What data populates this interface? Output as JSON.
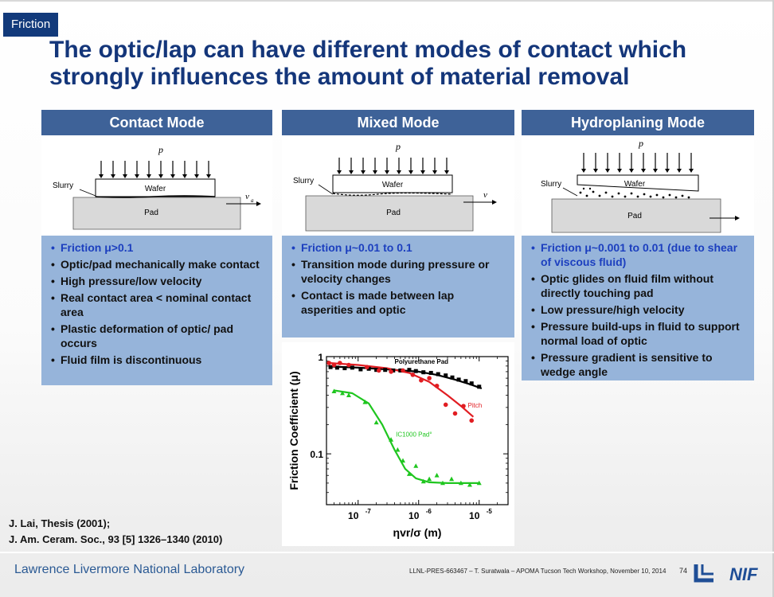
{
  "section_tag": "Friction",
  "title": "The optic/lap can have different modes of contact which strongly influences the amount of material removal",
  "columns": [
    {
      "heading": "Contact Mode",
      "diagram": {
        "p": "p",
        "slurry": "Slurry",
        "wafer": "Wafer",
        "pad": "Pad",
        "v": "v",
        "v_sub": "a"
      },
      "items": [
        "Friction μ>0.1",
        "Optic/pad mechanically make contact",
        "High pressure/low velocity",
        "Real contact area < nominal contact area",
        "Plastic deformation of optic/ pad occurs",
        "Fluid film is discontinuous"
      ]
    },
    {
      "heading": "Mixed Mode",
      "diagram": {
        "p": "p",
        "slurry": "Slurry",
        "wafer": "Wafer",
        "pad": "Pad",
        "v": "v"
      },
      "items": [
        "Friction μ~0.01 to 0.1",
        "Transition mode during pressure or velocity changes",
        "Contact is made between lap asperities and optic"
      ]
    },
    {
      "heading": "Hydroplaning Mode",
      "diagram": {
        "p": "p",
        "slurry": "Slurry",
        "wafer": "Wafer",
        "pad": "Pad"
      },
      "items": [
        "Friction μ~0.001 to 0.01 (due to shear of viscous fluid)",
        "Optic glides on fluid film without directly touching pad",
        "Low pressure/high velocity",
        "Pressure build-ups in fluid to support normal load of optic",
        "Pressure gradient is sensitive to wedge angle"
      ]
    }
  ],
  "chart_data": {
    "type": "scatter",
    "xlabel": "ηvr/σ (m)",
    "ylabel": "Friction Coefficient (μ)",
    "xscale": "log",
    "yscale": "log",
    "xlim": [
      3e-08,
      3e-05
    ],
    "ylim": [
      0.03,
      1.0
    ],
    "xticks": [
      1e-07,
      1e-06,
      1e-05
    ],
    "xtick_labels": [
      "10",
      "10",
      "10"
    ],
    "xtick_exps": [
      "-7",
      "-6",
      "-5"
    ],
    "yticks": [
      1,
      0.1
    ],
    "ytick_labels": [
      "1",
      "0.1"
    ],
    "series": [
      {
        "name": "Polyurethane Pad",
        "color": "#000000",
        "marker": "square",
        "points": [
          [
            3.5e-08,
            0.78
          ],
          [
            4.5e-08,
            0.77
          ],
          [
            6e-08,
            0.76
          ],
          [
            8e-08,
            0.77
          ],
          [
            1.1e-07,
            0.74
          ],
          [
            1.5e-07,
            0.75
          ],
          [
            2e-07,
            0.73
          ],
          [
            2.8e-07,
            0.73
          ],
          [
            3.8e-07,
            0.72
          ],
          [
            5e-07,
            0.72
          ],
          [
            7e-07,
            0.73
          ],
          [
            9e-07,
            0.71
          ],
          [
            1.2e-06,
            0.69
          ],
          [
            1.6e-06,
            0.68
          ],
          [
            2.1e-06,
            0.66
          ],
          [
            2.8e-06,
            0.64
          ],
          [
            3.6e-06,
            0.61
          ],
          [
            4.6e-06,
            0.58
          ],
          [
            6e-06,
            0.56
          ],
          [
            7.5e-06,
            0.53
          ],
          [
            1e-05,
            0.49
          ]
        ],
        "fit": [
          [
            3.5e-08,
            0.79
          ],
          [
            1e-07,
            0.77
          ],
          [
            3e-07,
            0.74
          ],
          [
            1e-06,
            0.7
          ],
          [
            2e-06,
            0.65
          ],
          [
            4e-06,
            0.58
          ],
          [
            7e-06,
            0.52
          ],
          [
            1.1e-05,
            0.47
          ]
        ]
      },
      {
        "name": "Pitch",
        "color": "#e11d22",
        "marker": "circle",
        "points": [
          [
            3.3e-08,
            0.86
          ],
          [
            4e-08,
            0.82
          ],
          [
            5e-08,
            0.86
          ],
          [
            7e-08,
            0.82
          ],
          [
            1.4e-07,
            0.78
          ],
          [
            2.2e-07,
            0.72
          ],
          [
            3.5e-07,
            0.7
          ],
          [
            5.5e-07,
            0.72
          ],
          [
            8e-07,
            0.65
          ],
          [
            1.1e-06,
            0.57
          ],
          [
            1.5e-06,
            0.6
          ],
          [
            2e-06,
            0.5
          ],
          [
            2.8e-06,
            0.32
          ],
          [
            4e-06,
            0.26
          ],
          [
            5.5e-06,
            0.31
          ],
          [
            7.5e-06,
            0.22
          ]
        ],
        "fit": [
          [
            3.3e-08,
            0.86
          ],
          [
            1e-07,
            0.82
          ],
          [
            3e-07,
            0.76
          ],
          [
            7e-07,
            0.68
          ],
          [
            1.5e-06,
            0.55
          ],
          [
            3e-06,
            0.4
          ],
          [
            5e-06,
            0.31
          ],
          [
            8e-06,
            0.24
          ]
        ]
      },
      {
        "name": "IC1000 Pad",
        "color": "#1fc61f",
        "marker": "triangle",
        "points": [
          [
            4e-08,
            0.44
          ],
          [
            5.5e-08,
            0.42
          ],
          [
            7e-08,
            0.4
          ],
          [
            1.3e-07,
            0.34
          ],
          [
            2e-07,
            0.21
          ],
          [
            3.5e-07,
            0.14
          ],
          [
            4.5e-07,
            0.11
          ],
          [
            5.5e-07,
            0.085
          ],
          [
            7e-07,
            0.062
          ],
          [
            9e-07,
            0.075
          ],
          [
            1.2e-06,
            0.052
          ],
          [
            1.5e-06,
            0.055
          ],
          [
            2e-06,
            0.06
          ],
          [
            2.5e-06,
            0.05
          ],
          [
            3.5e-06,
            0.055
          ],
          [
            5e-06,
            0.05
          ],
          [
            7e-06,
            0.048
          ],
          [
            1e-05,
            0.05
          ]
        ],
        "fit": [
          [
            4e-08,
            0.45
          ],
          [
            8e-08,
            0.42
          ],
          [
            1.5e-07,
            0.33
          ],
          [
            2.5e-07,
            0.2
          ],
          [
            4e-07,
            0.11
          ],
          [
            6e-07,
            0.07
          ],
          [
            9e-07,
            0.056
          ],
          [
            1.5e-06,
            0.051
          ],
          [
            3e-06,
            0.05
          ],
          [
            1e-05,
            0.05
          ]
        ]
      }
    ],
    "annotations": [
      "Polyurethane Pad",
      "Pitch",
      "IC1000 Pad°"
    ]
  },
  "references": [
    "J. Lai, Thesis (2001);",
    "J. Am. Ceram. Soc., 93 [5] 1326–1340 (2010)"
  ],
  "footer": {
    "org": "Lawrence Livermore National Laboratory",
    "note": "LLNL-PRES-663467 – T. Suratwala – APOMA Tucson Tech Workshop, November 10, 2014",
    "page": "74",
    "logo_text": "NIF"
  }
}
